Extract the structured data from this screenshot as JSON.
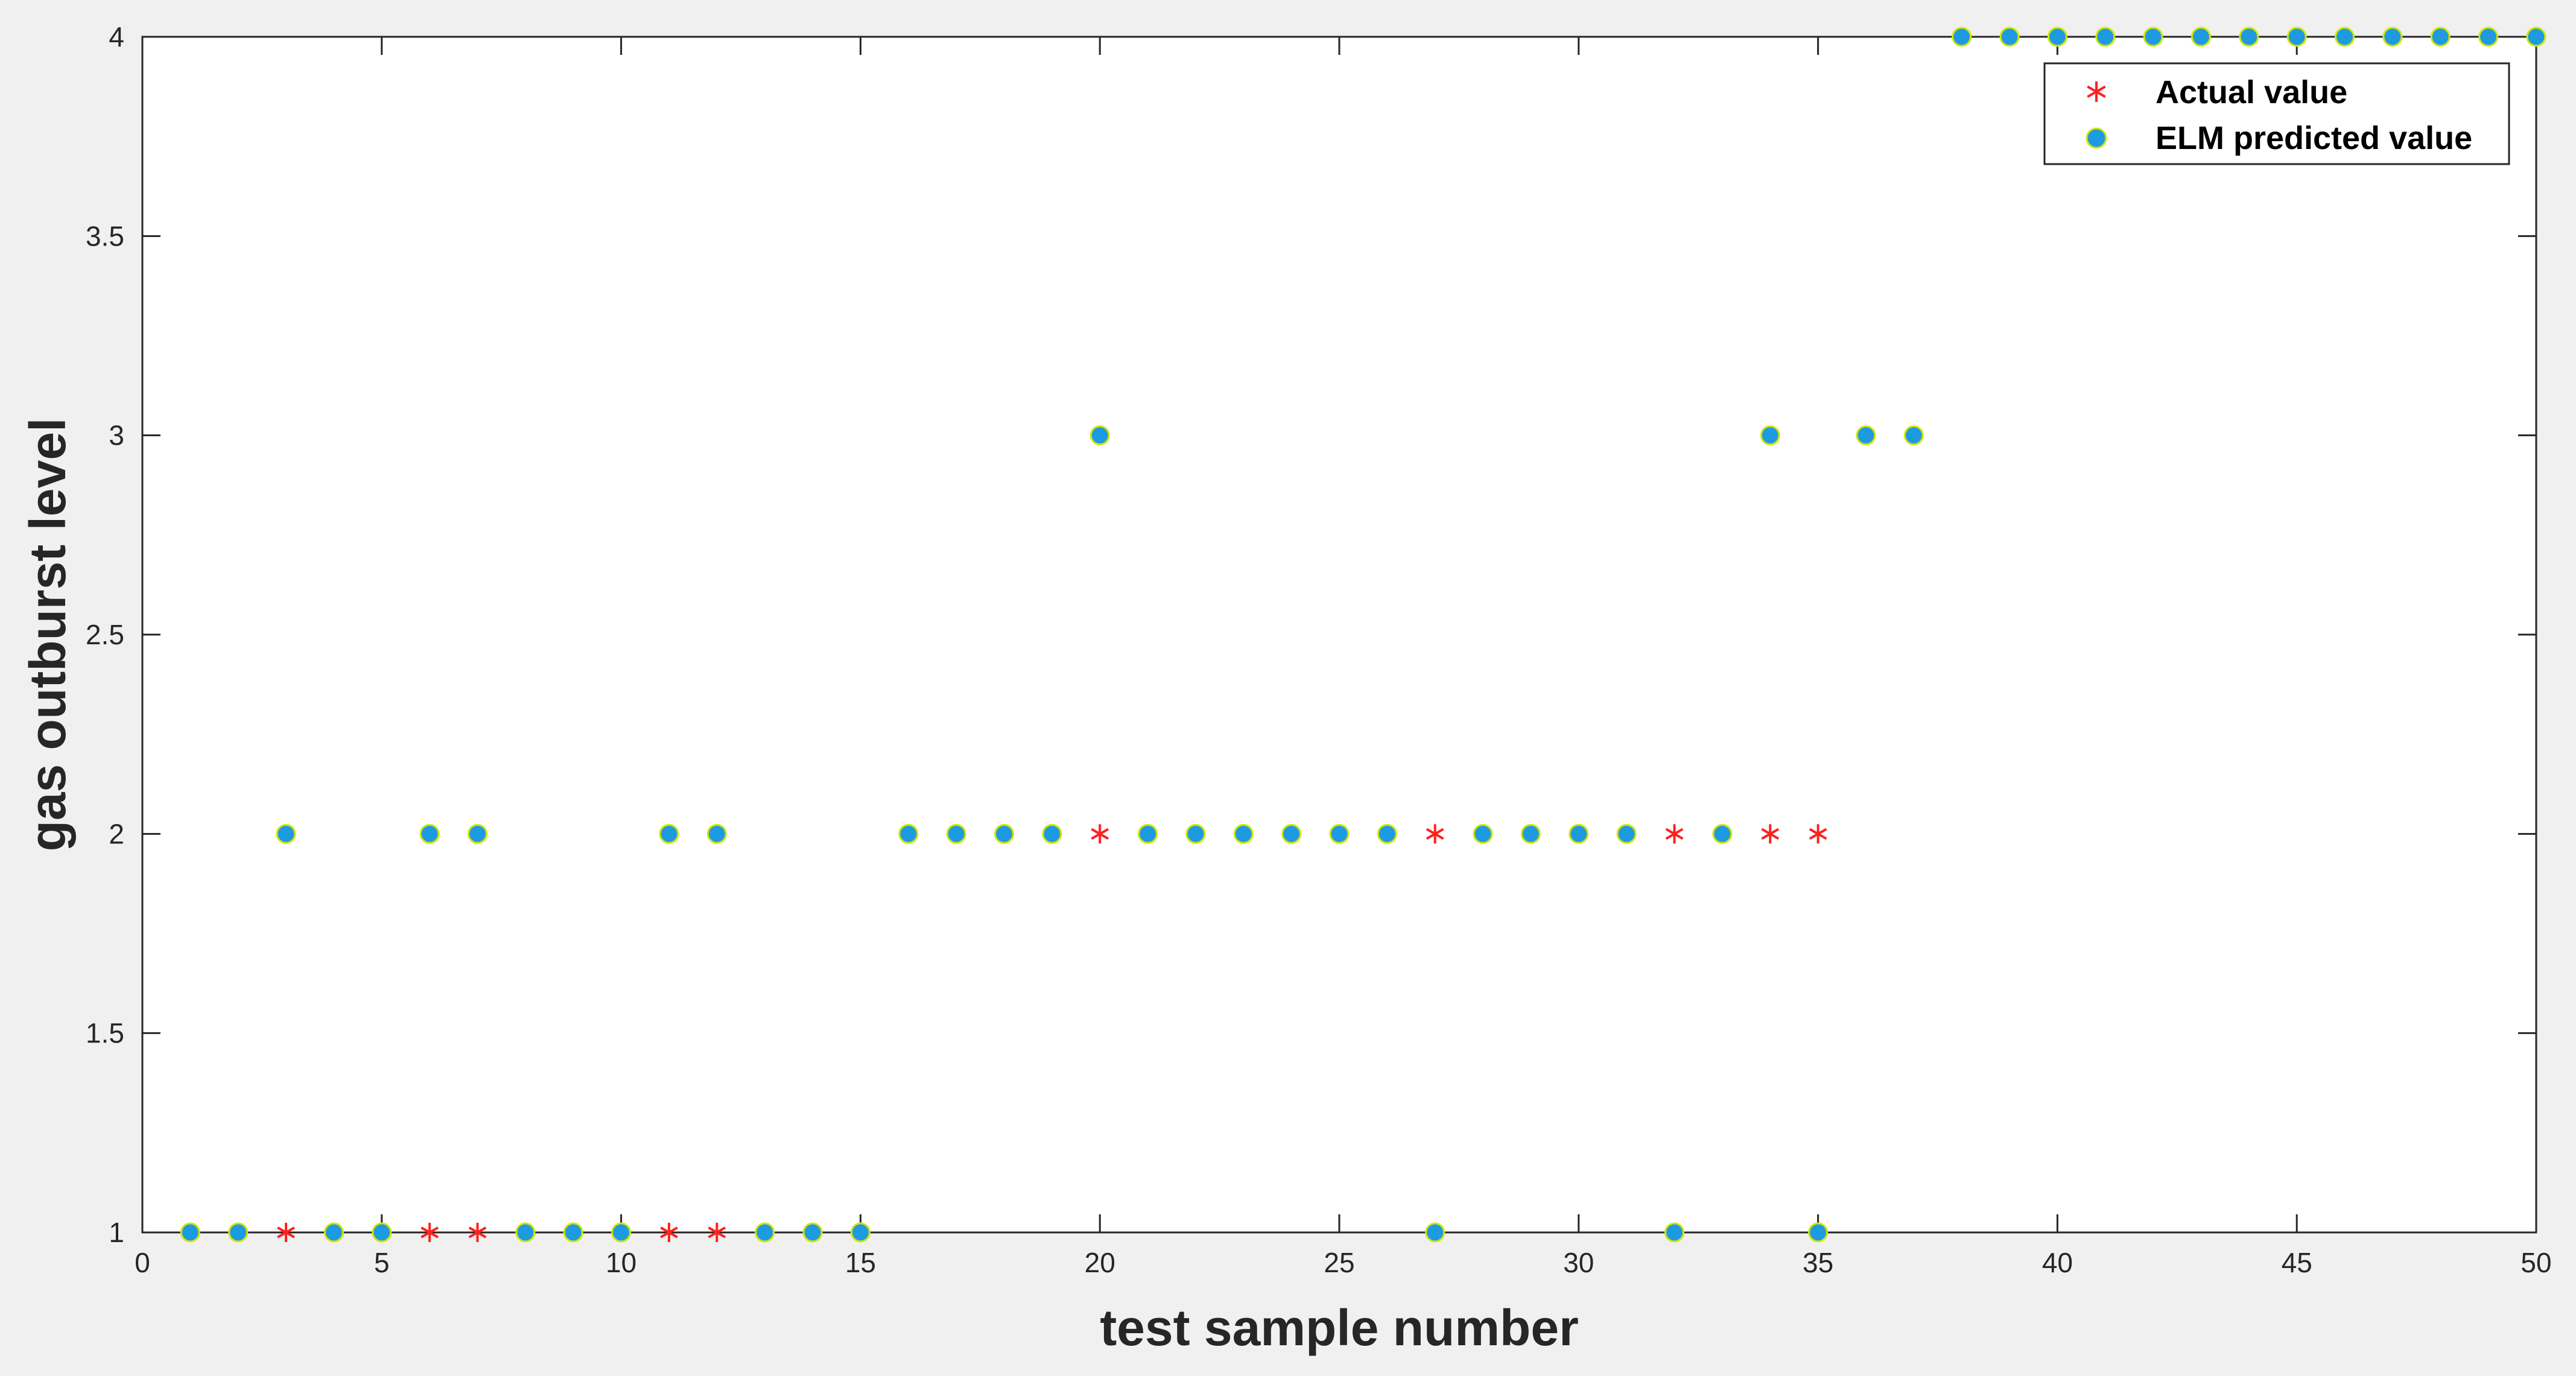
{
  "chart_data": {
    "type": "scatter",
    "xlabel": "test sample number",
    "ylabel": "gas outburst level",
    "xlim": [
      0,
      50
    ],
    "ylim": [
      1,
      4
    ],
    "xticks": [
      0,
      5,
      10,
      15,
      20,
      25,
      30,
      35,
      40,
      45,
      50
    ],
    "yticks": [
      1,
      1.5,
      2,
      2.5,
      3,
      3.5,
      4
    ],
    "xtick_labels": [
      "0",
      "5",
      "10",
      "15",
      "20",
      "25",
      "30",
      "35",
      "40",
      "45",
      "50"
    ],
    "ytick_labels": [
      "1",
      "1.5",
      "2",
      "2.5",
      "3",
      "3.5",
      "4"
    ],
    "grid": false,
    "legend_position": "top-right",
    "series": [
      {
        "name": "Actual value",
        "marker": "asterisk",
        "color": "#ff2020",
        "x": [
          1,
          2,
          3,
          4,
          5,
          6,
          7,
          8,
          9,
          10,
          11,
          12,
          13,
          14,
          15,
          16,
          17,
          18,
          19,
          20,
          21,
          22,
          23,
          24,
          25,
          26,
          27,
          28,
          29,
          30,
          31,
          32,
          33,
          34,
          35,
          36,
          37,
          38,
          39,
          40,
          41,
          42,
          43,
          44,
          45,
          46,
          47,
          48,
          49,
          50
        ],
        "y": [
          1,
          1,
          1,
          1,
          1,
          1,
          1,
          1,
          1,
          1,
          1,
          1,
          1,
          1,
          1,
          2,
          2,
          2,
          2,
          2,
          2,
          2,
          2,
          2,
          2,
          2,
          2,
          2,
          2,
          2,
          2,
          2,
          2,
          2,
          2,
          3,
          3,
          4,
          4,
          4,
          4,
          4,
          4,
          4,
          4,
          4,
          4,
          4,
          4,
          4
        ]
      },
      {
        "name": "ELM predicted value",
        "marker": "circle",
        "color": "#1e9be0",
        "edge_color": "#d4e600",
        "x": [
          1,
          2,
          3,
          4,
          5,
          6,
          7,
          8,
          9,
          10,
          11,
          12,
          13,
          14,
          15,
          16,
          17,
          18,
          19,
          20,
          21,
          22,
          23,
          24,
          25,
          26,
          27,
          28,
          29,
          30,
          31,
          32,
          33,
          34,
          35,
          36,
          37,
          38,
          39,
          40,
          41,
          42,
          43,
          44,
          45,
          46,
          47,
          48,
          49,
          50
        ],
        "y": [
          1,
          1,
          2,
          1,
          1,
          2,
          2,
          1,
          1,
          1,
          2,
          2,
          1,
          1,
          1,
          2,
          2,
          2,
          2,
          3,
          2,
          2,
          2,
          2,
          2,
          2,
          1,
          2,
          2,
          2,
          2,
          1,
          2,
          3,
          1,
          3,
          3,
          4,
          4,
          4,
          4,
          4,
          4,
          4,
          4,
          4,
          4,
          4,
          4,
          4
        ]
      }
    ]
  }
}
